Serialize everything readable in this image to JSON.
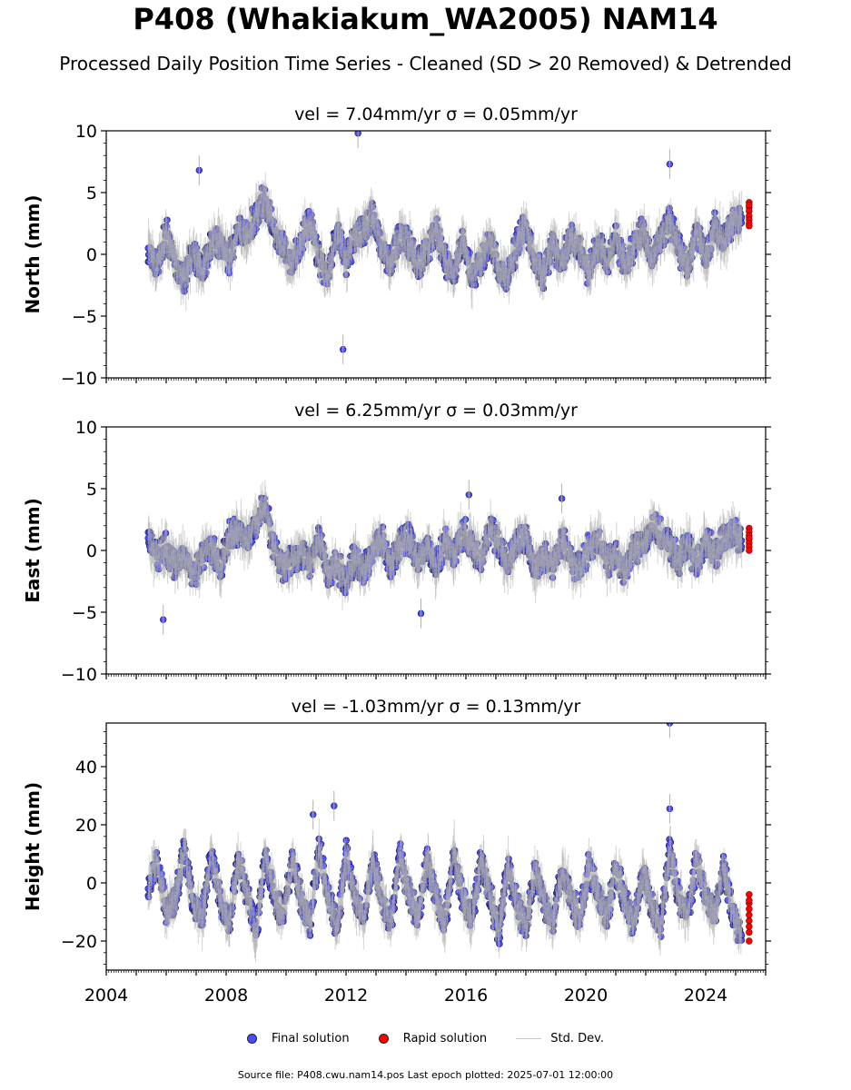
{
  "title": "P408 (Whakiakum_WA2005) NAM14",
  "subtitle": "Processed Daily Position Time Series - Cleaned (SD > 20 Removed) & Detrended",
  "legend": {
    "final": "Final solution",
    "rapid": "Rapid solution",
    "std": "Std. Dev."
  },
  "footer": "Source file: P408.cwu.nam14.pos  Last epoch plotted: 2025-07-01 12:00:00",
  "colors": {
    "final": "#4b4bff",
    "rapid": "#ff0000",
    "std": "#c8c8c8"
  },
  "chart_data": [
    {
      "type": "scatter",
      "panel_title": "vel = 7.04mm/yr   σ = 0.05mm/yr",
      "ylabel": "North (mm)",
      "xlim": [
        2004,
        2026
      ],
      "ylim": [
        -10,
        10
      ],
      "yticks": [
        -10,
        -5,
        0,
        5,
        10
      ],
      "ytick_labels": [
        "−10",
        "−5",
        "0",
        "5",
        "10"
      ],
      "series": [
        {
          "name": "Final solution",
          "x": [
            2005.4,
            2005.7,
            2006.0,
            2006.3,
            2006.6,
            2006.9,
            2007.2,
            2007.5,
            2007.8,
            2008.1,
            2008.4,
            2008.7,
            2009.0,
            2009.3,
            2009.6,
            2009.9,
            2010.2,
            2010.5,
            2010.8,
            2011.1,
            2011.4,
            2011.7,
            2012.0,
            2012.3,
            2012.6,
            2012.9,
            2013.2,
            2013.5,
            2013.8,
            2014.1,
            2014.4,
            2014.7,
            2015.0,
            2015.3,
            2015.6,
            2015.9,
            2016.2,
            2016.5,
            2016.8,
            2017.1,
            2017.4,
            2017.7,
            2018.0,
            2018.3,
            2018.6,
            2018.9,
            2019.2,
            2019.5,
            2019.8,
            2020.1,
            2020.4,
            2020.7,
            2021.0,
            2021.3,
            2021.6,
            2021.9,
            2022.2,
            2022.5,
            2022.8,
            2023.1,
            2023.4,
            2023.7,
            2024.0,
            2024.3,
            2024.6,
            2024.9,
            2025.2
          ],
          "y": [
            0.5,
            -1.2,
            1.8,
            -0.8,
            -2.0,
            0.3,
            -1.5,
            0.8,
            1.0,
            -0.5,
            2.0,
            1.5,
            3.2,
            4.5,
            2.0,
            0.5,
            -0.8,
            1.2,
            2.5,
            -0.5,
            -1.8,
            1.8,
            -0.5,
            1.5,
            2.0,
            3.0,
            0.5,
            -0.8,
            1.5,
            0.8,
            -1.0,
            0.5,
            2.0,
            -0.5,
            -1.8,
            1.2,
            -2.0,
            -0.5,
            1.5,
            -1.2,
            -1.8,
            0.8,
            2.5,
            -0.5,
            -1.5,
            1.0,
            -0.8,
            1.2,
            0.5,
            -1.5,
            0.8,
            -0.5,
            1.5,
            -1.0,
            0.5,
            2.0,
            -0.5,
            1.5,
            2.5,
            0.5,
            -1.2,
            1.8,
            -0.5,
            2.2,
            1.0,
            2.5,
            3.0
          ]
        },
        {
          "name": "Rapid solution",
          "x": [
            2025.45,
            2025.45,
            2025.45,
            2025.45,
            2025.45,
            2025.45,
            2025.45,
            2025.45
          ],
          "y": [
            4.2,
            3.8,
            3.5,
            3.1,
            2.8,
            2.5,
            2.3,
            4.0
          ]
        }
      ],
      "outliers": [
        [
          2012.4,
          9.8
        ],
        [
          2011.9,
          -7.7
        ],
        [
          2022.8,
          7.3
        ],
        [
          2007.1,
          6.8
        ]
      ]
    },
    {
      "type": "scatter",
      "panel_title": "vel = 6.25mm/yr   σ = 0.03mm/yr",
      "ylabel": "East (mm)",
      "xlim": [
        2004,
        2026
      ],
      "ylim": [
        -10,
        10
      ],
      "yticks": [
        -10,
        -5,
        0,
        5,
        10
      ],
      "ytick_labels": [
        "−10",
        "−5",
        "0",
        "5",
        "10"
      ],
      "series": [
        {
          "name": "Final solution",
          "x": [
            2005.4,
            2005.7,
            2006.0,
            2006.3,
            2006.6,
            2006.9,
            2007.2,
            2007.5,
            2007.8,
            2008.1,
            2008.4,
            2008.7,
            2009.0,
            2009.3,
            2009.6,
            2009.9,
            2010.2,
            2010.5,
            2010.8,
            2011.1,
            2011.4,
            2011.7,
            2012.0,
            2012.3,
            2012.6,
            2012.9,
            2013.2,
            2013.5,
            2013.8,
            2014.1,
            2014.4,
            2014.7,
            2015.0,
            2015.3,
            2015.6,
            2015.9,
            2016.2,
            2016.5,
            2016.8,
            2017.1,
            2017.4,
            2017.7,
            2018.0,
            2018.3,
            2018.6,
            2018.9,
            2019.2,
            2019.5,
            2019.8,
            2020.1,
            2020.4,
            2020.7,
            2021.0,
            2021.3,
            2021.6,
            2021.9,
            2022.2,
            2022.5,
            2022.8,
            2023.1,
            2023.4,
            2023.7,
            2024.0,
            2024.3,
            2024.6,
            2024.9,
            2025.2
          ],
          "y": [
            1.0,
            -0.5,
            0.2,
            -1.2,
            -0.5,
            -1.8,
            -0.8,
            0.5,
            -1.5,
            1.2,
            1.8,
            0.5,
            2.5,
            3.5,
            0.2,
            -1.5,
            -0.8,
            -0.2,
            -1.0,
            1.0,
            -2.0,
            -1.2,
            -2.5,
            -0.5,
            -1.8,
            0.2,
            0.8,
            -1.5,
            0.5,
            1.0,
            -0.8,
            0.2,
            -1.2,
            0.8,
            -0.5,
            1.5,
            0.5,
            -0.8,
            1.8,
            0.5,
            -1.2,
            0.8,
            1.0,
            -1.5,
            -0.5,
            -1.0,
            0.8,
            -0.8,
            -1.5,
            0.2,
            1.2,
            -1.0,
            -0.5,
            -1.8,
            0.2,
            0.5,
            2.0,
            1.2,
            0.5,
            -0.8,
            0.5,
            -1.2,
            1.0,
            -0.5,
            0.8,
            1.5,
            0.8
          ]
        },
        {
          "name": "Rapid solution",
          "x": [
            2025.45,
            2025.45,
            2025.45,
            2025.45,
            2025.45,
            2025.45,
            2025.45,
            2025.45
          ],
          "y": [
            1.8,
            1.5,
            1.2,
            0.9,
            0.6,
            0.3,
            0.0,
            1.0
          ]
        }
      ],
      "outliers": [
        [
          2005.9,
          -5.6
        ],
        [
          2014.5,
          -5.1
        ],
        [
          2019.2,
          4.2
        ],
        [
          2016.1,
          4.5
        ]
      ]
    },
    {
      "type": "scatter",
      "panel_title": "vel = -1.03mm/yr   σ = 0.13mm/yr",
      "ylabel": "Height (mm)",
      "xlim": [
        2004,
        2026
      ],
      "ylim": [
        -30,
        55
      ],
      "yticks": [
        -20,
        0,
        20,
        40
      ],
      "ytick_labels": [
        "−20",
        "0",
        "20",
        "40"
      ],
      "xticks": [
        2004,
        2008,
        2012,
        2016,
        2020,
        2024
      ],
      "xtick_labels": [
        "2004",
        "2008",
        "2012",
        "2016",
        "2020",
        "2024"
      ],
      "series": [
        {
          "name": "Final solution",
          "x": [
            2005.4,
            2005.7,
            2006.0,
            2006.3,
            2006.6,
            2006.9,
            2007.2,
            2007.5,
            2007.8,
            2008.1,
            2008.4,
            2008.7,
            2009.0,
            2009.3,
            2009.6,
            2009.9,
            2010.2,
            2010.5,
            2010.8,
            2011.1,
            2011.4,
            2011.7,
            2012.0,
            2012.3,
            2012.6,
            2012.9,
            2013.2,
            2013.5,
            2013.8,
            2014.1,
            2014.4,
            2014.7,
            2015.0,
            2015.3,
            2015.6,
            2015.9,
            2016.2,
            2016.5,
            2016.8,
            2017.1,
            2017.4,
            2017.7,
            2018.0,
            2018.3,
            2018.6,
            2018.9,
            2019.2,
            2019.5,
            2019.8,
            2020.1,
            2020.4,
            2020.7,
            2021.0,
            2021.3,
            2021.6,
            2021.9,
            2022.2,
            2022.5,
            2022.8,
            2023.1,
            2023.4,
            2023.7,
            2024.0,
            2024.3,
            2024.6,
            2024.9,
            2025.2
          ],
          "y": [
            -2,
            8,
            -10,
            -5,
            12,
            -8,
            -12,
            10,
            -6,
            -14,
            8,
            -4,
            -18,
            10,
            -5,
            -12,
            8,
            -6,
            -14,
            12,
            -4,
            -16,
            10,
            -5,
            -12,
            8,
            -6,
            -13,
            10,
            -4,
            -12,
            8,
            -5,
            -14,
            10,
            -6,
            -12,
            8,
            -4,
            -18,
            6,
            -8,
            -15,
            5,
            -6,
            -14,
            4,
            -5,
            -12,
            6,
            -4,
            -12,
            5,
            -6,
            -14,
            4,
            -8,
            -16,
            12,
            -6,
            -10,
            8,
            -5,
            -12,
            6,
            -10,
            -18
          ]
        },
        {
          "name": "Rapid solution",
          "x": [
            2025.45,
            2025.45,
            2025.45,
            2025.45,
            2025.45,
            2025.45,
            2025.45,
            2025.45,
            2025.45
          ],
          "y": [
            -4,
            -7,
            -9,
            -11,
            -13,
            -15,
            -17,
            -20,
            -6
          ]
        }
      ],
      "outliers": [
        [
          2022.8,
          55
        ],
        [
          2011.6,
          26.5
        ],
        [
          2010.9,
          23.5
        ],
        [
          2022.8,
          25.5
        ]
      ]
    }
  ]
}
